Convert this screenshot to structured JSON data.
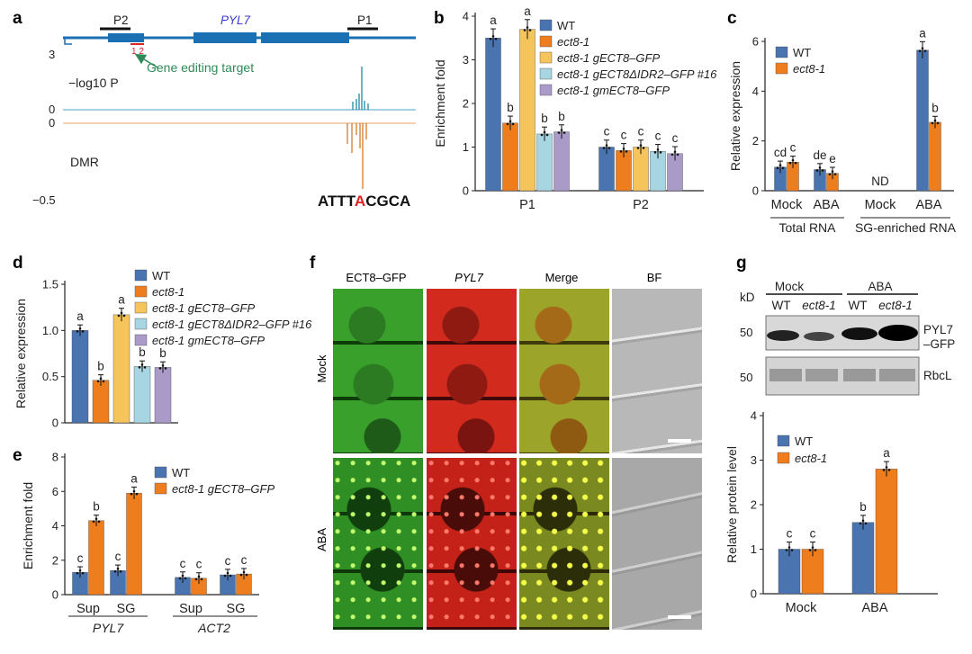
{
  "colors": {
    "wt": "#4a74b0",
    "ect8": "#ee7d1e",
    "g": "#f5c55b",
    "dIDR": "#a8d5e2",
    "gm": "#a99ac8"
  },
  "panel_letters": {
    "a": "a",
    "b": "b",
    "c": "c",
    "d": "d",
    "e": "e",
    "f": "f",
    "g": "g"
  },
  "panel_a": {
    "gene": "PYL7",
    "probes": [
      "P2",
      "P1"
    ],
    "sites": "1 2",
    "annotation": "Gene editing target",
    "ylabel_top": "−log10 P",
    "ytop_ticks": [
      "3",
      "0"
    ],
    "ybottom_ticks": [
      "0",
      "−0.5"
    ],
    "dmr": "DMR",
    "motif_pre": "ATTT",
    "motif_hit": "A",
    "motif_post": "CGCA"
  },
  "chart_data": [
    {
      "id": "b",
      "type": "bar",
      "ylabel": "Enrichment fold",
      "ylim": [
        0,
        4
      ],
      "yticks": [
        "0",
        "1",
        "2",
        "3",
        "4"
      ],
      "categories": [
        "P1",
        "P2"
      ],
      "series": [
        {
          "name": "WT",
          "values": [
            3.5,
            1.0
          ],
          "letters": [
            "a",
            "c"
          ]
        },
        {
          "name": "ect8-1",
          "values": [
            1.55,
            0.92
          ],
          "letters": [
            "b",
            "c"
          ]
        },
        {
          "name": "ect8-1 gECT8–GFP",
          "values": [
            3.7,
            1.0
          ],
          "letters": [
            "a",
            "c"
          ]
        },
        {
          "name": "ect8-1 gECT8ΔIDR2–GFP #16",
          "values": [
            1.3,
            0.9
          ],
          "letters": [
            "b",
            "c"
          ]
        },
        {
          "name": "ect8-1 gmECT8–GFP",
          "values": [
            1.35,
            0.85
          ],
          "letters": [
            "b",
            "c"
          ]
        }
      ],
      "legend": "top-right"
    },
    {
      "id": "c",
      "type": "bar",
      "ylabel": "Relative expression",
      "ylim": [
        0,
        6
      ],
      "yticks": [
        "0",
        "2",
        "4",
        "6"
      ],
      "categories": [
        "Mock",
        "ABA",
        "Mock",
        "ABA"
      ],
      "groups": [
        "Total RNA",
        "SG-enriched RNA"
      ],
      "series": [
        {
          "name": "WT",
          "values": [
            0.95,
            0.85,
            0,
            5.65
          ],
          "letters": [
            "cd",
            "de",
            "ND",
            "a"
          ]
        },
        {
          "name": "ect8-1",
          "values": [
            1.15,
            0.7,
            0,
            2.75
          ],
          "letters": [
            "c",
            "e",
            "",
            "b"
          ]
        }
      ],
      "legend": "top-left"
    },
    {
      "id": "d",
      "type": "bar",
      "ylabel": "Relative expression",
      "ylim": [
        0,
        1.5
      ],
      "yticks": [
        "0",
        "0.5",
        "1.0",
        "1.5"
      ],
      "categories": [
        ""
      ],
      "series": [
        {
          "name": "WT",
          "values": [
            1.0
          ],
          "letters": [
            "a"
          ]
        },
        {
          "name": "ect8-1",
          "values": [
            0.46
          ],
          "letters": [
            "b"
          ]
        },
        {
          "name": "ect8-1 gECT8–GFP",
          "values": [
            1.17
          ],
          "letters": [
            "a"
          ]
        },
        {
          "name": "ect8-1 gECT8ΔIDR2–GFP #16",
          "values": [
            0.61
          ],
          "letters": [
            "b"
          ]
        },
        {
          "name": "ect8-1 gmECT8–GFP",
          "values": [
            0.6
          ],
          "letters": [
            "b"
          ]
        }
      ],
      "legend": "top-right"
    },
    {
      "id": "e",
      "type": "bar",
      "ylabel": "Enrichment fold",
      "ylim": [
        0,
        8
      ],
      "yticks": [
        "0",
        "2",
        "4",
        "6",
        "8"
      ],
      "categories": [
        "Sup",
        "SG",
        "Sup",
        "SG"
      ],
      "groups": [
        "PYL7",
        "ACT2"
      ],
      "series": [
        {
          "name": "WT",
          "values": [
            1.3,
            1.4,
            1.0,
            1.15
          ],
          "letters": [
            "c",
            "c",
            "c",
            "c"
          ]
        },
        {
          "name": "ect8-1 gECT8–GFP",
          "values": [
            4.3,
            5.9,
            0.95,
            1.2
          ],
          "letters": [
            "b",
            "a",
            "c",
            "c"
          ]
        }
      ],
      "legend": "top-right"
    },
    {
      "id": "g",
      "type": "bar",
      "ylabel": "Relative protein level",
      "ylim": [
        0,
        4
      ],
      "yticks": [
        "0",
        "1",
        "2",
        "3",
        "4"
      ],
      "categories": [
        "Mock",
        "ABA"
      ],
      "series": [
        {
          "name": "WT",
          "values": [
            1.0,
            1.6
          ],
          "letters": [
            "c",
            "b"
          ]
        },
        {
          "name": "ect8-1",
          "values": [
            1.0,
            2.8
          ],
          "letters": [
            "c",
            "a"
          ]
        }
      ],
      "legend": "top-left"
    }
  ],
  "panel_f": {
    "columns": [
      "ECT8–GFP",
      "PYL7",
      "Merge",
      "BF"
    ],
    "rows": [
      "Mock",
      "ABA"
    ]
  },
  "panel_g_blot": {
    "kd": "kD",
    "groups": [
      "Mock",
      "ABA"
    ],
    "lanes": [
      "WT",
      "ect8-1",
      "WT",
      "ect8-1"
    ],
    "markers": [
      "50",
      "50"
    ],
    "bands": [
      "PYL7",
      "–GFP",
      "RbcL"
    ]
  }
}
